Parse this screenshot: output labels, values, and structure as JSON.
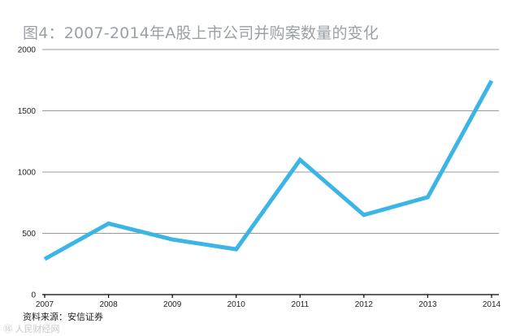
{
  "title": "图4：2007-2014年A股上市公司并购案数量的变化",
  "source": "资料来源：安信证券",
  "watermark": "⑱ 人民财经网",
  "chart_data": {
    "type": "line",
    "title": "图4：2007-2014年A股上市公司并购案数量的变化",
    "xlabel": "",
    "ylabel": "",
    "categories": [
      "2007",
      "2008",
      "2009",
      "2010",
      "2011",
      "2012",
      "2013",
      "2014"
    ],
    "series": [
      {
        "name": "并购案数量",
        "values": [
          290,
          580,
          450,
          370,
          1100,
          650,
          795,
          1745
        ]
      }
    ],
    "ylim": [
      0,
      2000
    ],
    "yticks": [
      0,
      500,
      1000,
      1500,
      2000
    ],
    "grid": true,
    "line_color": "#3bb5e5"
  }
}
